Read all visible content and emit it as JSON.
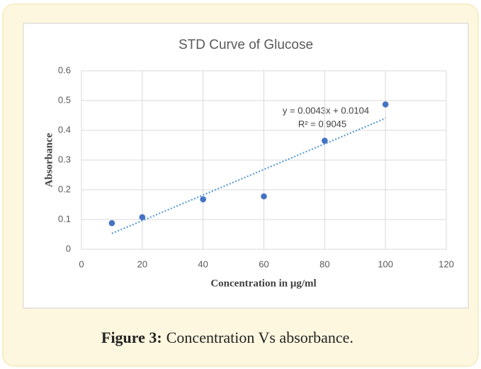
{
  "chart_data": {
    "type": "scatter",
    "title": "STD Curve of Glucose",
    "x_label": "Concentration in μg/ml",
    "y_label": "Absorbance",
    "series": [
      {
        "color": "#4472c4",
        "x": [
          10,
          20,
          40,
          60,
          80,
          100
        ],
        "values": [
          0.088,
          0.108,
          0.168,
          0.178,
          0.365,
          0.487
        ]
      }
    ],
    "trendline": {
      "slope": 0.0043,
      "intercept": 0.0104,
      "color": "#5b9bd5",
      "equation": "y = 0.0043x + 0.0104",
      "r2_label": "R² = 0.9045"
    },
    "xlim": [
      0,
      120
    ],
    "xticks": [
      0,
      20,
      40,
      60,
      80,
      100,
      120
    ],
    "ylim": [
      0,
      0.6
    ],
    "yticks": [
      0,
      0.1,
      0.2,
      0.3,
      0.4,
      0.5,
      0.6
    ],
    "grid": true
  },
  "caption": {
    "label": "Figure 3:",
    "text": "Concentration Vs absorbance."
  }
}
